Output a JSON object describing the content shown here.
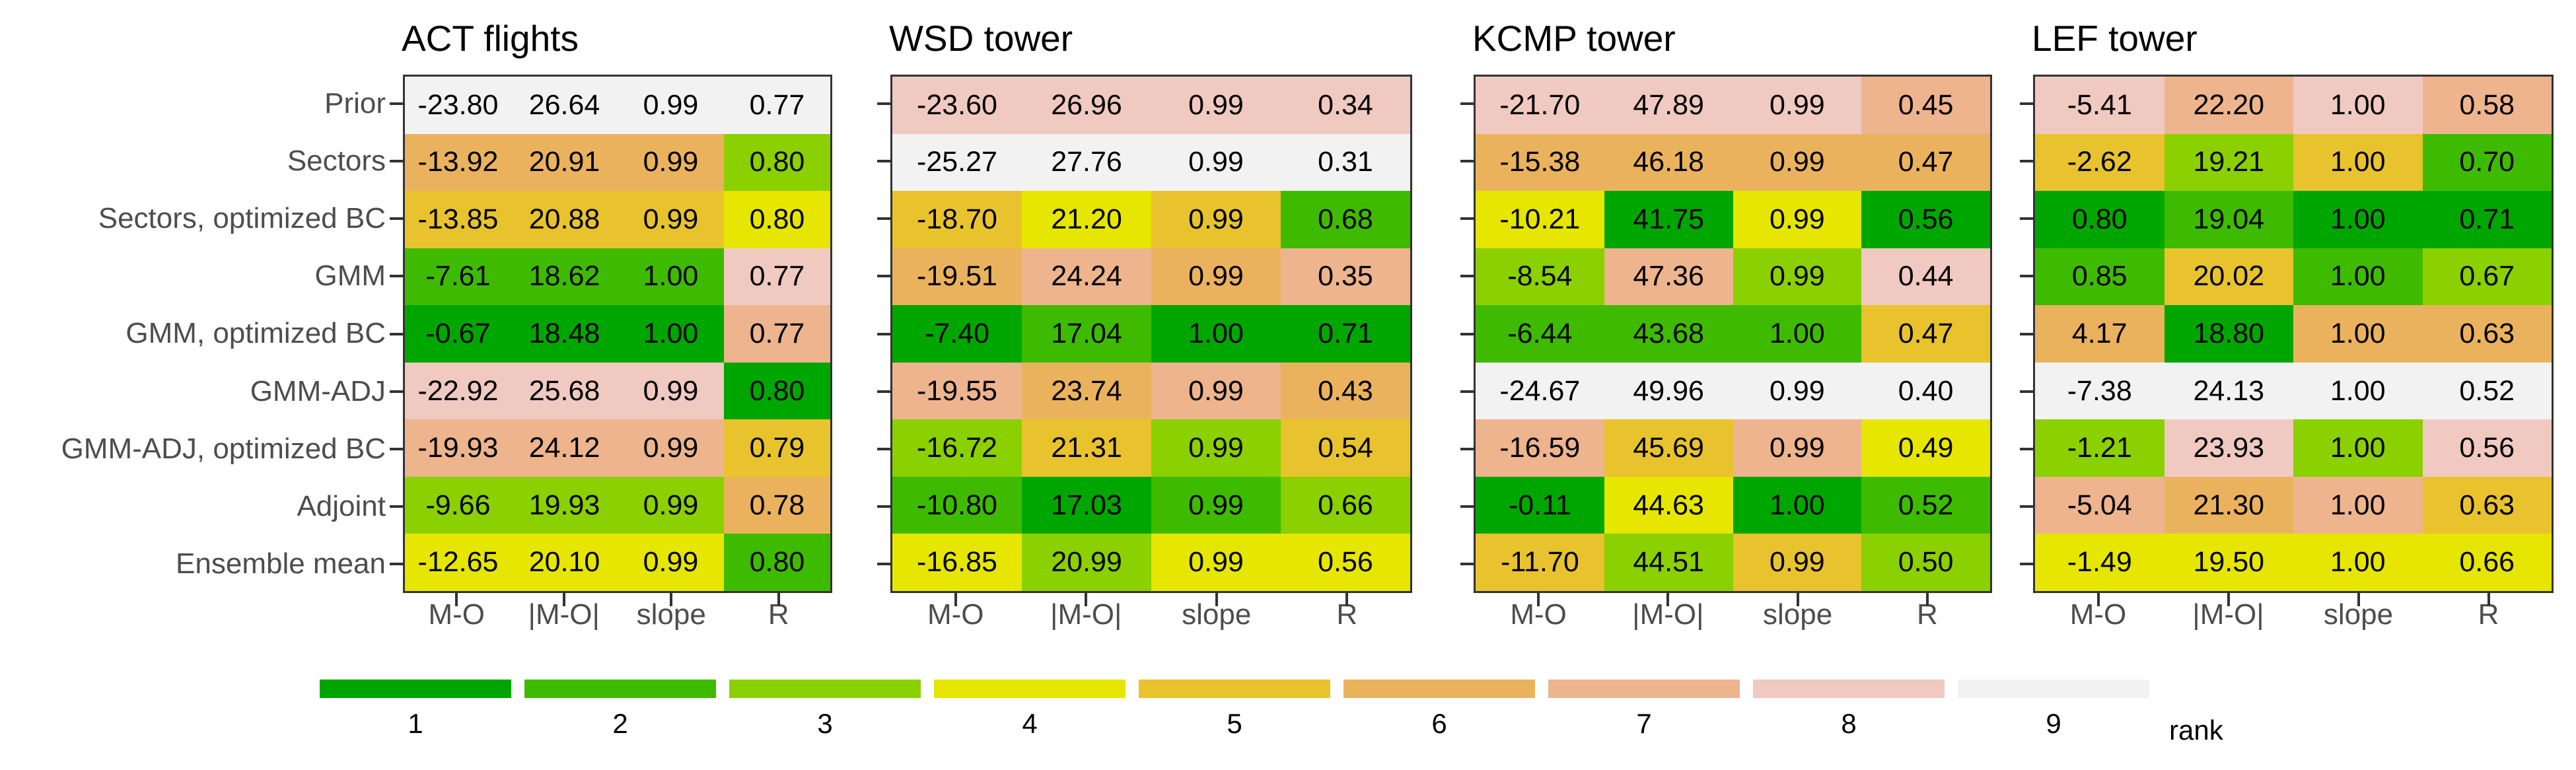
{
  "legend": {
    "title": "rank",
    "labels": [
      "1",
      "2",
      "3",
      "4",
      "5",
      "6",
      "7",
      "8",
      "9"
    ],
    "palette": [
      "#00A600",
      "#3EBB00",
      "#8BD000",
      "#E6E600",
      "#E8C32E",
      "#EBB25E",
      "#EDB48E",
      "#F0C9C0",
      "#F2F2F2"
    ]
  },
  "chart_data": {
    "type": "heatmap",
    "columns": [
      "M-O",
      "|M-O|",
      "slope",
      "R"
    ],
    "rows": [
      "Prior",
      "Sectors",
      "Sectors, optimized BC",
      "GMM",
      "GMM, optimized BC",
      "GMM-ADJ",
      "GMM-ADJ, optimized BC",
      "Adjoint",
      "Ensemble mean"
    ],
    "value_format": "2 decimals",
    "color_encoding": "rank per column, 1 best (dark green) to 9 worst (light gray)",
    "panels": [
      {
        "title": "ACT flights",
        "values": [
          [
            -23.8,
            26.64,
            0.99,
            0.77
          ],
          [
            -13.92,
            20.91,
            0.99,
            0.8
          ],
          [
            -13.85,
            20.88,
            0.99,
            0.8
          ],
          [
            -7.61,
            18.62,
            1.0,
            0.77
          ],
          [
            -0.67,
            18.48,
            1.0,
            0.77
          ],
          [
            -22.92,
            25.68,
            0.99,
            0.8
          ],
          [
            -19.93,
            24.12,
            0.99,
            0.79
          ],
          [
            -9.66,
            19.93,
            0.99,
            0.78
          ],
          [
            -12.65,
            20.1,
            0.99,
            0.8
          ]
        ],
        "ranks": [
          [
            9,
            9,
            9,
            9
          ],
          [
            6,
            6,
            6,
            3
          ],
          [
            5,
            5,
            5,
            4
          ],
          [
            2,
            2,
            2,
            8
          ],
          [
            1,
            1,
            1,
            7
          ],
          [
            8,
            8,
            8,
            1
          ],
          [
            7,
            7,
            7,
            5
          ],
          [
            3,
            3,
            3,
            6
          ],
          [
            4,
            4,
            4,
            2
          ]
        ]
      },
      {
        "title": "WSD tower",
        "values": [
          [
            -23.6,
            26.96,
            0.99,
            0.34
          ],
          [
            -25.27,
            27.76,
            0.99,
            0.31
          ],
          [
            -18.7,
            21.2,
            0.99,
            0.68
          ],
          [
            -19.51,
            24.24,
            0.99,
            0.35
          ],
          [
            -7.4,
            17.04,
            1.0,
            0.71
          ],
          [
            -19.55,
            23.74,
            0.99,
            0.43
          ],
          [
            -16.72,
            21.31,
            0.99,
            0.54
          ],
          [
            -10.8,
            17.03,
            0.99,
            0.66
          ],
          [
            -16.85,
            20.99,
            0.99,
            0.56
          ]
        ],
        "ranks": [
          [
            8,
            8,
            8,
            8
          ],
          [
            9,
            9,
            9,
            9
          ],
          [
            5,
            4,
            5,
            2
          ],
          [
            6,
            7,
            6,
            7
          ],
          [
            1,
            2,
            1,
            1
          ],
          [
            7,
            6,
            7,
            6
          ],
          [
            3,
            5,
            3,
            5
          ],
          [
            2,
            1,
            2,
            3
          ],
          [
            4,
            3,
            4,
            4
          ]
        ]
      },
      {
        "title": "KCMP tower",
        "values": [
          [
            -21.7,
            47.89,
            0.99,
            0.45
          ],
          [
            -15.38,
            46.18,
            0.99,
            0.47
          ],
          [
            -10.21,
            41.75,
            0.99,
            0.56
          ],
          [
            -8.54,
            47.36,
            0.99,
            0.44
          ],
          [
            -6.44,
            43.68,
            1.0,
            0.47
          ],
          [
            -24.67,
            49.96,
            0.99,
            0.4
          ],
          [
            -16.59,
            45.69,
            0.99,
            0.49
          ],
          [
            -0.11,
            44.63,
            1.0,
            0.52
          ],
          [
            -11.7,
            44.51,
            0.99,
            0.5
          ]
        ],
        "ranks": [
          [
            8,
            8,
            8,
            7
          ],
          [
            6,
            6,
            6,
            6
          ],
          [
            4,
            1,
            4,
            1
          ],
          [
            3,
            7,
            3,
            8
          ],
          [
            2,
            2,
            2,
            5
          ],
          [
            9,
            9,
            9,
            9
          ],
          [
            7,
            5,
            7,
            4
          ],
          [
            1,
            4,
            1,
            2
          ],
          [
            5,
            3,
            5,
            3
          ]
        ]
      },
      {
        "title": "LEF tower",
        "values": [
          [
            -5.41,
            22.2,
            1.0,
            0.58
          ],
          [
            -2.62,
            19.21,
            1.0,
            0.7
          ],
          [
            0.8,
            19.04,
            1.0,
            0.71
          ],
          [
            0.85,
            20.02,
            1.0,
            0.67
          ],
          [
            4.17,
            18.8,
            1.0,
            0.63
          ],
          [
            -7.38,
            24.13,
            1.0,
            0.52
          ],
          [
            -1.21,
            23.93,
            1.0,
            0.56
          ],
          [
            -5.04,
            21.3,
            1.0,
            0.63
          ],
          [
            -1.49,
            19.5,
            1.0,
            0.66
          ]
        ],
        "ranks": [
          [
            8,
            7,
            8,
            7
          ],
          [
            5,
            3,
            5,
            2
          ],
          [
            1,
            2,
            1,
            1
          ],
          [
            2,
            5,
            2,
            3
          ],
          [
            6,
            1,
            6,
            6
          ],
          [
            9,
            9,
            9,
            9
          ],
          [
            3,
            8,
            3,
            8
          ],
          [
            7,
            6,
            7,
            5
          ],
          [
            4,
            4,
            4,
            4
          ]
        ]
      }
    ],
    "legend_title": "rank",
    "legend_labels": [
      "1",
      "2",
      "3",
      "4",
      "5",
      "6",
      "7",
      "8",
      "9"
    ]
  }
}
